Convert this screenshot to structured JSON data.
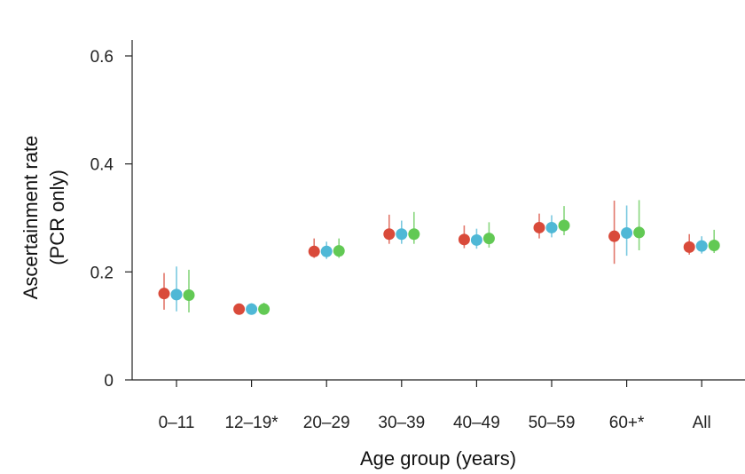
{
  "chart_data": {
    "type": "scatter",
    "xlabel": "Age group (years)",
    "ylabel_lines": [
      "Ascertainment rate",
      "(PCR only)"
    ],
    "categories": [
      "0–11",
      "12–19*",
      "20–29",
      "30–39",
      "40–49",
      "50–59",
      "60+*",
      "All"
    ],
    "ylim": [
      0,
      0.6
    ],
    "yticks": [
      0,
      0.2,
      0.4,
      0.6
    ],
    "ytick_labels": [
      "0",
      "0.2",
      "0.4",
      "0.6"
    ],
    "grid": false,
    "series": [
      {
        "color": "#d94a3a",
        "values": [
          0.16,
          0.131,
          0.238,
          0.27,
          0.26,
          0.282,
          0.266,
          0.246
        ],
        "lower": [
          0.13,
          0.123,
          0.226,
          0.252,
          0.244,
          0.262,
          0.215,
          0.232
        ],
        "upper": [
          0.198,
          0.14,
          0.262,
          0.306,
          0.286,
          0.308,
          0.332,
          0.27
        ]
      },
      {
        "color": "#4fb8d6",
        "values": [
          0.158,
          0.131,
          0.238,
          0.27,
          0.259,
          0.282,
          0.272,
          0.248
        ],
        "lower": [
          0.127,
          0.122,
          0.224,
          0.252,
          0.243,
          0.264,
          0.23,
          0.234
        ],
        "upper": [
          0.21,
          0.142,
          0.256,
          0.295,
          0.28,
          0.305,
          0.323,
          0.266
        ]
      },
      {
        "color": "#62c954",
        "values": [
          0.157,
          0.131,
          0.239,
          0.27,
          0.262,
          0.286,
          0.273,
          0.249
        ],
        "lower": [
          0.125,
          0.122,
          0.226,
          0.252,
          0.245,
          0.268,
          0.24,
          0.235
        ],
        "upper": [
          0.204,
          0.143,
          0.262,
          0.311,
          0.292,
          0.322,
          0.333,
          0.278
        ]
      }
    ]
  }
}
